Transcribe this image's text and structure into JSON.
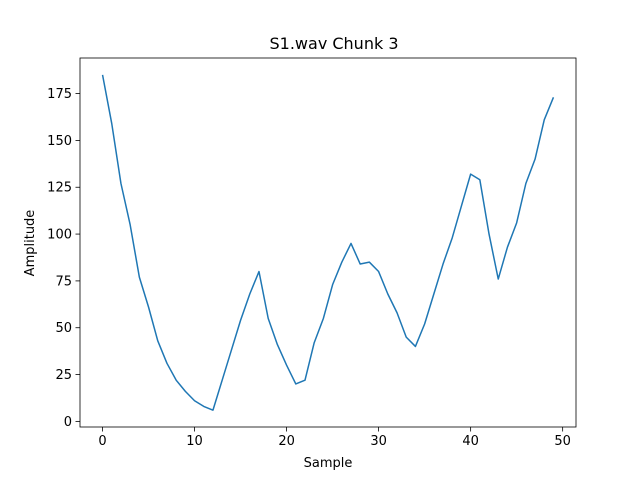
{
  "chart_data": {
    "type": "line",
    "title": "S1.wav Chunk 3",
    "xlabel": "Sample",
    "ylabel": "Amplitude",
    "xlim": [
      -2.45,
      51.45
    ],
    "ylim": [
      -3,
      194
    ],
    "xticks": [
      0,
      10,
      20,
      30,
      40,
      50
    ],
    "yticks": [
      0,
      25,
      50,
      75,
      100,
      125,
      150,
      175
    ],
    "grid": false,
    "line_color": "#1f77b4",
    "series": [
      {
        "x": [
          0,
          1,
          2,
          3,
          4,
          5,
          6,
          7,
          8,
          9,
          10,
          11,
          12,
          13,
          14,
          15,
          16,
          17,
          18,
          19,
          20,
          21,
          22,
          23,
          24,
          25,
          26,
          27,
          28,
          29,
          30,
          31,
          32,
          33,
          34,
          35,
          36,
          37,
          38,
          39,
          40,
          41,
          42,
          43,
          44,
          45,
          46,
          47,
          48,
          49
        ],
        "values": [
          185,
          159,
          127,
          105,
          77,
          61,
          43,
          31,
          22,
          16,
          11,
          8,
          6,
          22,
          38,
          54,
          68,
          80,
          55,
          41,
          30,
          20,
          22,
          42,
          55,
          73,
          85,
          95,
          84,
          85,
          80,
          68,
          58,
          45,
          40,
          52,
          68,
          84,
          98,
          115,
          132,
          129,
          100,
          76,
          93,
          106,
          127,
          140,
          161,
          173
        ]
      }
    ]
  }
}
